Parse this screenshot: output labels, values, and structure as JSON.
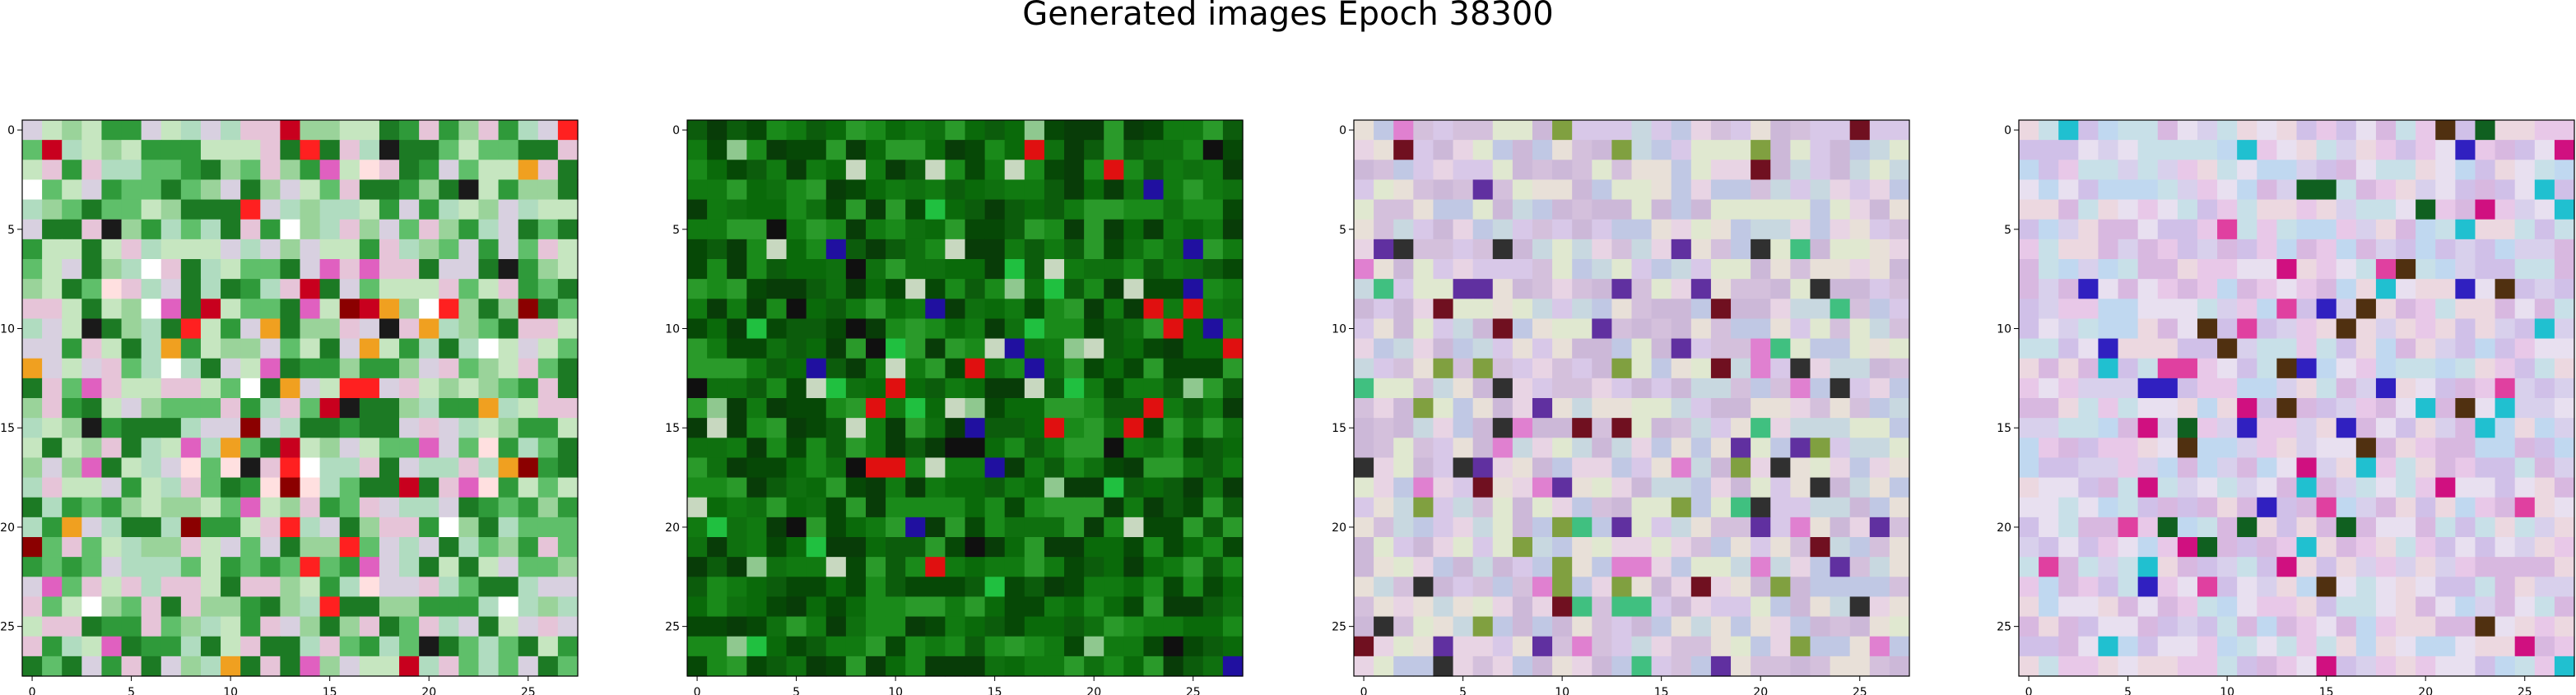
{
  "figure": {
    "title": "Generated images Epoch 38300"
  },
  "chart_data": [
    {
      "type": "heatmap",
      "image_size": 28,
      "xlim": [
        -0.5,
        27.5
      ],
      "ylim": [
        27.5,
        -0.5
      ],
      "xticks": [
        0,
        5,
        10,
        15,
        20,
        25
      ],
      "yticks": [
        0,
        5,
        10,
        15,
        20,
        25
      ],
      "xtick_labels": [
        "0",
        "5",
        "10",
        "15",
        "20",
        "25"
      ],
      "ytick_labels": [
        "0",
        "5",
        "10",
        "15",
        "20",
        "25"
      ],
      "grid": false,
      "palette": [
        "#9ad39a",
        "#c6e6c0",
        "#d8d0e0",
        "#e6c4d8",
        "#b0dcc0",
        "#5fbf6a",
        "#2f9a3a",
        "#1c7a24"
      ],
      "accents": [
        "#c8001e",
        "#ff2020",
        "#8b0000",
        "#f0a020",
        "#ffe0e0",
        "#e060c0",
        "#1a1a1a",
        "#ffffff"
      ],
      "note_colors": "dominant hues read from the picture"
    },
    {
      "type": "heatmap",
      "image_size": 28,
      "xlim": [
        -0.5,
        27.5
      ],
      "ylim": [
        27.5,
        -0.5
      ],
      "xticks": [
        0,
        5,
        10,
        15,
        20,
        25
      ],
      "yticks": [
        0,
        5,
        10,
        15,
        20,
        25
      ],
      "xtick_labels": [
        "0",
        "5",
        "10",
        "15",
        "20",
        "25"
      ],
      "ytick_labels": [
        "0",
        "5",
        "10",
        "15",
        "20",
        "25"
      ],
      "grid": false,
      "palette": [
        "#0a6a0a",
        "#117a11",
        "#0c5c0c",
        "#1a8a1a",
        "#064806",
        "#2a9a2a",
        "#0f700f",
        "#083c08"
      ],
      "accents": [
        "#e01010",
        "#101010",
        "#20c040",
        "#2010a0",
        "#c8d8c0",
        "#8fc88f"
      ]
    },
    {
      "type": "heatmap",
      "image_size": 28,
      "xlim": [
        -0.5,
        27.5
      ],
      "ylim": [
        27.5,
        -0.5
      ],
      "xticks": [
        0,
        5,
        10,
        15,
        20,
        25
      ],
      "yticks": [
        0,
        5,
        10,
        15,
        20,
        25
      ],
      "xtick_labels": [
        "0",
        "5",
        "10",
        "15",
        "20",
        "25"
      ],
      "ytick_labels": [
        "0",
        "5",
        "10",
        "15",
        "20",
        "25"
      ],
      "grid": false,
      "palette": [
        "#e8d4e4",
        "#d8c8e8",
        "#c8d8e0",
        "#e8e0d8",
        "#d4c0dc",
        "#c0c8e4",
        "#e0e8d0",
        "#ccb8d8"
      ],
      "accents": [
        "#e080d0",
        "#40c080",
        "#6030a0",
        "#701020",
        "#303030",
        "#80a040"
      ]
    },
    {
      "type": "heatmap",
      "image_size": 28,
      "xlim": [
        -0.5,
        27.5
      ],
      "ylim": [
        27.5,
        -0.5
      ],
      "xticks": [
        0,
        5,
        10,
        15,
        20,
        25
      ],
      "yticks": [
        0,
        5,
        10,
        15,
        20,
        25
      ],
      "xtick_labels": [
        "0",
        "5",
        "10",
        "15",
        "20",
        "25"
      ],
      "ytick_labels": [
        "0",
        "5",
        "10",
        "15",
        "20",
        "25"
      ],
      "grid": false,
      "palette": [
        "#e8c8e8",
        "#d8d0ec",
        "#c8e0e8",
        "#ecd8e0",
        "#d0c0e8",
        "#c0d8f0",
        "#e8e0f0",
        "#d8b8e0"
      ],
      "accents": [
        "#3020c0",
        "#d01080",
        "#106020",
        "#20c0d0",
        "#503010",
        "#e040a0"
      ]
    }
  ]
}
